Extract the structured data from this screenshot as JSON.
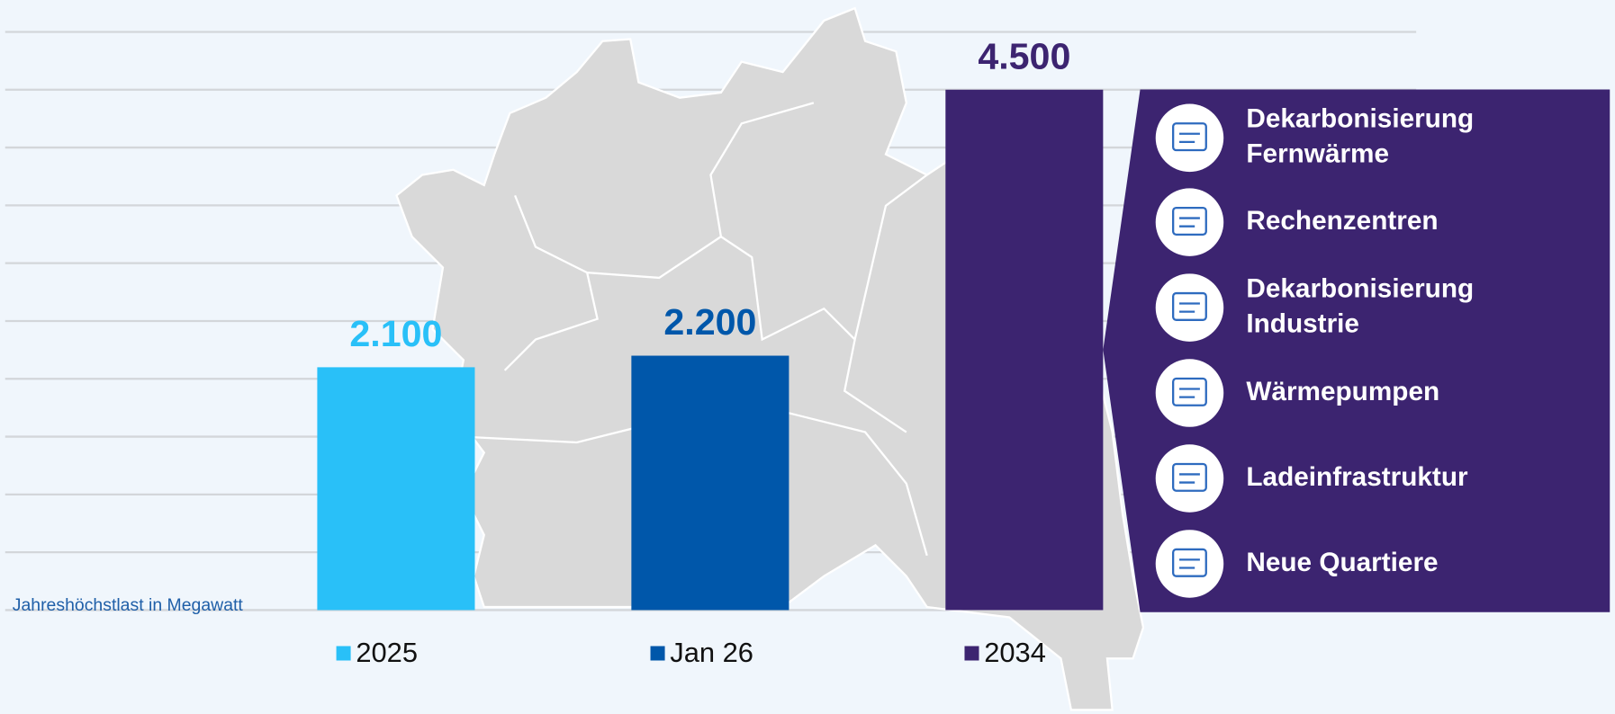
{
  "chart_data": {
    "type": "bar",
    "categories": [
      "2025",
      "Jan 26",
      "2034"
    ],
    "values": [
      2100,
      2200,
      4500
    ],
    "value_labels": [
      "2.100",
      "2.200",
      "4.500"
    ],
    "colors": [
      "#29c0f8",
      "#0057aa",
      "#3c2470"
    ],
    "y_label": "Jahreshöchstlast in Megawatt",
    "ylim": [
      0,
      5000
    ],
    "yticks": [
      0,
      500,
      1000,
      1500,
      2000,
      2500,
      3000,
      3500,
      4000,
      4500,
      5000
    ],
    "grid": true
  },
  "panel": {
    "items": [
      [
        "Dekarbonisierung",
        "Fernwärme"
      ],
      [
        "Rechenzentren"
      ],
      [
        "Dekarbonisierung",
        "Industrie"
      ],
      [
        "Wärmepumpen"
      ],
      [
        "Ladeinfrastruktur"
      ],
      [
        "Neue Quartiere"
      ]
    ]
  }
}
